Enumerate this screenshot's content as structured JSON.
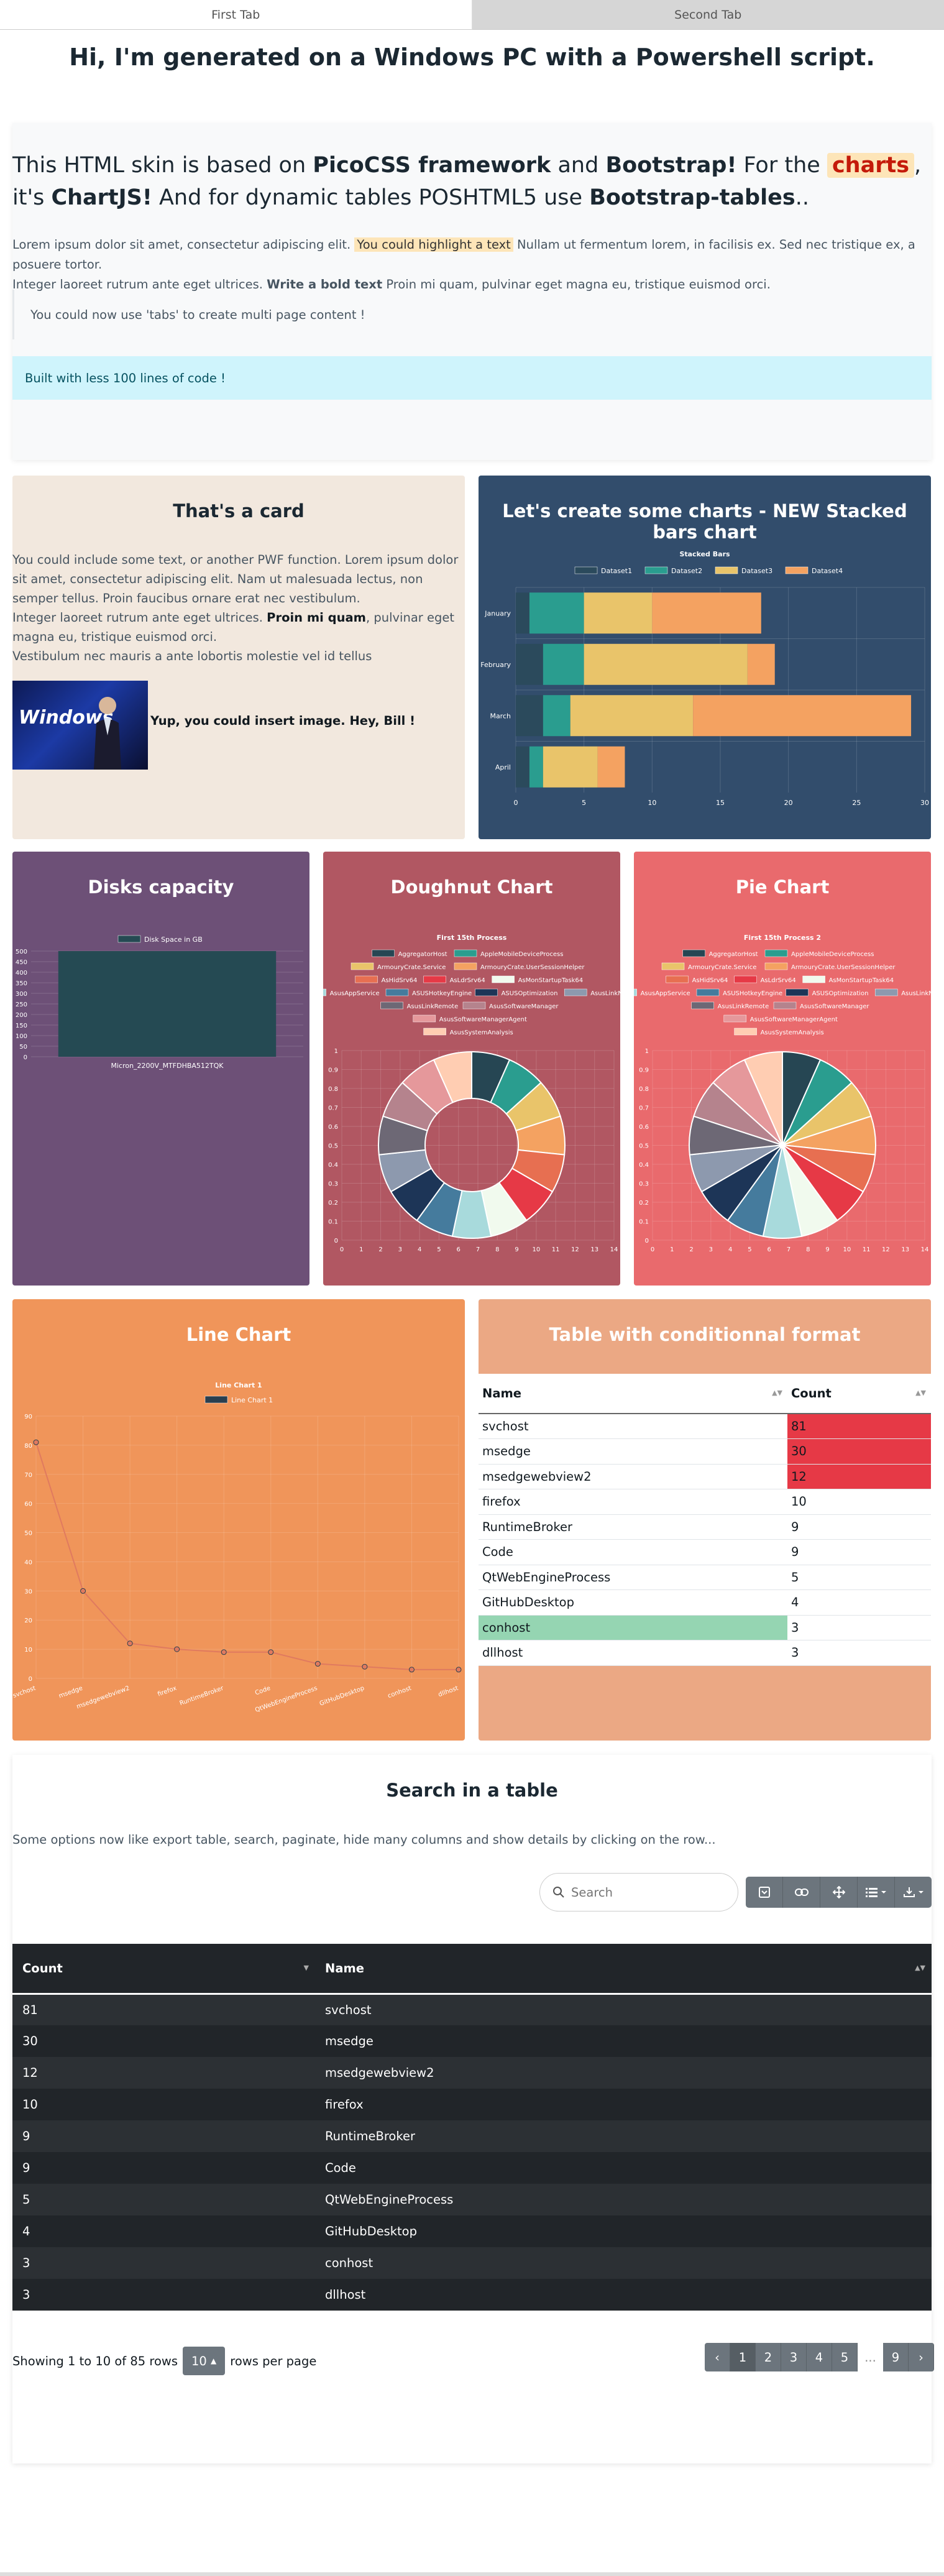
{
  "tabs": {
    "first": "First Tab",
    "second": "Second Tab"
  },
  "header": {
    "title": "Hi, I'm generated on a Windows PC with a Powershell script."
  },
  "intro": {
    "h_part1": "This HTML skin is based on ",
    "h_pico": "PicoCSS framework",
    "h_and": " and ",
    "h_bootstrap": "Bootstrap!",
    "h_for": " For the ",
    "h_charts": "charts",
    "h_its": ", it's ",
    "h_chartjs": "ChartJS!",
    "h_dyn": " And for dynamic tables POSHTML5 use ",
    "h_bt": "Bootstrap-tables",
    "h_end": "..",
    "p1": "Lorem ipsum dolor sit amet, consectetur adipiscing elit. ",
    "p_mark": "You could highlight a text",
    "p2": " Nullam ut fermentum lorem, in facilisis ex. Sed nec tristique ex, a posuere tortor.",
    "p3": "Integer laoreet rutrum ante eget ultrices. ",
    "p_bold": "Write a bold text",
    "p4": " Proin mi quam, pulvinar eget magna eu, tristique euismod orci.",
    "note": "You could now use 'tabs' to create multi page content !",
    "info": "Built with less 100 lines of code !"
  },
  "card1": {
    "title": "That's a card",
    "t1": "You could include some text, or another PWF function. Lorem ipsum dolor sit amet, consectetur adipiscing elit. Nam ut malesuada lectus, non semper tellus. Proin faucibus ornare erat nec vestibulum.",
    "t2": "Integer laoreet rutrum ante eget ultrices. ",
    "t2b": "Proin mi quam",
    "t2c": ", pulvinar eget magna eu, tristique euismod orci.",
    "t3": "Vestibulum nec mauris a ante lobortis molestie vel id tellus",
    "pic_logo": "Windows",
    "caption": "Yup, you could insert image. Hey, Bill !"
  },
  "card2": {
    "title": "Let's create some charts - NEW Stacked bars chart"
  },
  "card3": {
    "title": "Disks capacity"
  },
  "card4": {
    "title": "Doughnut Chart"
  },
  "card5": {
    "title": "Pie Chart"
  },
  "card6": {
    "title": "Line Chart"
  },
  "card7": {
    "title": "Table with conditionnal format"
  },
  "chart_data": [
    {
      "type": "bar",
      "title": "Stacked Bars",
      "stacked": true,
      "orientation": "horizontal",
      "categories": [
        "January",
        "February",
        "March",
        "April"
      ],
      "series": [
        {
          "name": "Dataset1",
          "values": [
            1,
            2,
            2,
            1
          ],
          "color": "#2b4a5c"
        },
        {
          "name": "Dataset2",
          "values": [
            4,
            3,
            2,
            1
          ],
          "color": "#2a9d8f"
        },
        {
          "name": "Dataset3",
          "values": [
            5,
            12,
            9,
            4
          ],
          "color": "#e9c46a"
        },
        {
          "name": "Dataset4",
          "values": [
            8,
            2,
            16,
            2
          ],
          "color": "#f4a261"
        }
      ],
      "xlim": [
        0,
        30
      ],
      "xticks": [
        0,
        5,
        10,
        15,
        20,
        25,
        30
      ],
      "legend": "top",
      "grid": true
    },
    {
      "type": "bar",
      "title": "",
      "categories": [
        "Micron_2200V_MTFDHBA512TQK"
      ],
      "series": [
        {
          "name": "Disk Space in GB",
          "values": [
            500
          ],
          "color": "#254a53"
        }
      ],
      "ylim": [
        0,
        500
      ],
      "yticks": [
        0,
        50,
        100,
        150,
        200,
        250,
        300,
        350,
        400,
        450,
        500
      ],
      "legend": "top",
      "grid": true
    },
    {
      "type": "pie",
      "subtype": "doughnut",
      "title": "First 15th Process",
      "labels": [
        "AggregatorHost",
        "AppleMobileDeviceProcess",
        "ArmouryCrate.Service",
        "ArmouryCrate.UserSessionHelper",
        "AsHidSrv64",
        "AsLdrSrv64",
        "AsMonStartupTask64",
        "AsusAppService",
        "ASUSHotkeyEngine",
        "ASUSOptimization",
        "AsusLinkNear",
        "AsusLinkRemote",
        "AsusSoftwareManager",
        "AsusSoftwareManagerAgent",
        "AsusSystemAnalysis"
      ],
      "values": [
        1,
        1,
        1,
        1,
        1,
        1,
        1,
        1,
        1,
        1,
        1,
        1,
        1,
        1,
        1
      ],
      "colors": [
        "#264653",
        "#2a9d8f",
        "#e9c46a",
        "#f4a261",
        "#e76f51",
        "#e63946",
        "#f1faee",
        "#a8dadc",
        "#457b9d",
        "#1d3557",
        "#8d99ae",
        "#6d6875",
        "#b5838d",
        "#e5989b",
        "#ffcdb2"
      ],
      "legend": "top",
      "xticks": [
        0,
        1,
        2,
        3,
        4,
        5,
        6,
        7,
        8,
        9,
        10,
        11,
        12,
        13,
        14
      ],
      "yticks": [
        0,
        0.1,
        0.2,
        0.3,
        0.4,
        0.5,
        0.6,
        0.7,
        0.8,
        0.9,
        1
      ]
    },
    {
      "type": "pie",
      "title": "First 15th Process 2",
      "labels": [
        "AggregatorHost",
        "AppleMobileDeviceProcess",
        "ArmouryCrate.Service",
        "ArmouryCrate.UserSessionHelper",
        "AsHidSrv64",
        "AsLdrSrv64",
        "AsMonStartupTask64",
        "AsusAppService",
        "ASUSHotkeyEngine",
        "ASUSOptimization",
        "AsusLinkNear",
        "AsusLinkRemote",
        "AsusSoftwareManager",
        "AsusSoftwareManagerAgent",
        "AsusSystemAnalysis"
      ],
      "values": [
        1,
        1,
        1,
        1,
        1,
        1,
        1,
        1,
        1,
        1,
        1,
        1,
        1,
        1,
        1
      ],
      "colors": [
        "#264653",
        "#2a9d8f",
        "#e9c46a",
        "#f4a261",
        "#e76f51",
        "#e63946",
        "#f1faee",
        "#a8dadc",
        "#457b9d",
        "#1d3557",
        "#8d99ae",
        "#6d6875",
        "#b5838d",
        "#e5989b",
        "#ffcdb2"
      ],
      "legend": "top",
      "xticks": [
        0,
        1,
        2,
        3,
        4,
        5,
        6,
        7,
        8,
        9,
        10,
        11,
        12,
        13,
        14
      ],
      "yticks": [
        0,
        0.1,
        0.2,
        0.3,
        0.4,
        0.5,
        0.6,
        0.7,
        0.8,
        0.9,
        1
      ]
    },
    {
      "type": "line",
      "title": "Line Chart 1",
      "categories": [
        "svchost",
        "msedge",
        "msedgewebview2",
        "firefox",
        "RuntimeBroker",
        "Code",
        "QtWebEngineProcess",
        "GitHubDesktop",
        "conhost",
        "dllhost"
      ],
      "series": [
        {
          "name": "Line Chart 1",
          "values": [
            81,
            30,
            12,
            10,
            9,
            9,
            5,
            4,
            3,
            3
          ],
          "color": "#e07a5f"
        }
      ],
      "ylim": [
        0,
        90
      ],
      "yticks": [
        0,
        10,
        20,
        30,
        40,
        50,
        60,
        70,
        80,
        90
      ],
      "legend": "top",
      "grid": true
    }
  ],
  "cftable": {
    "headers": [
      "Name",
      "Count"
    ],
    "rows": [
      {
        "name": "svchost",
        "count": "81",
        "bg": "#e63946"
      },
      {
        "name": "msedge",
        "count": "30",
        "bg": "#e63946"
      },
      {
        "name": "msedgewebview2",
        "count": "12",
        "bg": "#e63946"
      },
      {
        "name": "firefox",
        "count": "10",
        "bg": ""
      },
      {
        "name": "RuntimeBroker",
        "count": "9",
        "bg": ""
      },
      {
        "name": "Code",
        "count": "9",
        "bg": ""
      },
      {
        "name": "QtWebEngineProcess",
        "count": "5",
        "bg": ""
      },
      {
        "name": "GitHubDesktop",
        "count": "4",
        "bg": ""
      },
      {
        "name": "conhost",
        "count": "3",
        "bg": "#95d5b2"
      },
      {
        "name": "dllhost",
        "count": "3",
        "bg": ""
      }
    ],
    "low_color": "#95d5b2",
    "high_color": "#e63946"
  },
  "search": {
    "title": "Search in a table",
    "desc": "Some options now like export table, search, paginate, hide many columns and show details by clicking on the row...",
    "placeholder": "Search",
    "headers": [
      "Count",
      "Name"
    ],
    "rows": [
      [
        "81",
        "svchost"
      ],
      [
        "30",
        "msedge"
      ],
      [
        "12",
        "msedgewebview2"
      ],
      [
        "10",
        "firefox"
      ],
      [
        "9",
        "RuntimeBroker"
      ],
      [
        "9",
        "Code"
      ],
      [
        "5",
        "QtWebEngineProcess"
      ],
      [
        "4",
        "GitHubDesktop"
      ],
      [
        "3",
        "conhost"
      ],
      [
        "3",
        "dllhost"
      ]
    ],
    "showing": "Showing 1 to 10 of 85 rows",
    "page_size": "10",
    "per_page": "rows per page",
    "pages": [
      "‹",
      "1",
      "2",
      "3",
      "4",
      "5",
      "...",
      "9",
      "›"
    ],
    "active_page": "1",
    "toolbar_icons": [
      "toggle-icon",
      "link-icon",
      "fullscreen-icon",
      "columns-icon",
      "export-icon"
    ]
  }
}
